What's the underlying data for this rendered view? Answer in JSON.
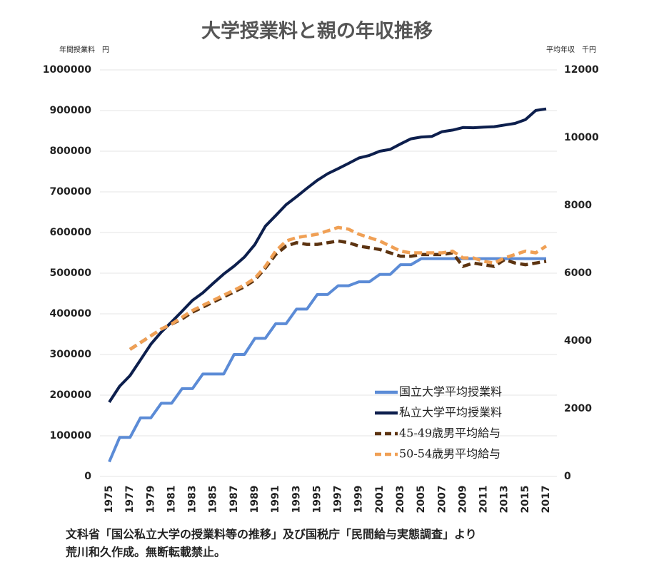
{
  "chart_data": {
    "type": "line",
    "title": "大学授業料と親の年収推移",
    "y_label": "年間授業料　円",
    "y2_label": "平均年収　千円",
    "notes": [
      "文科省「国公私立大学の授業料等の推移」及び国税庁「民間給与実態調査」より",
      "荒川和久作成。無断転載禁止。"
    ],
    "categories": [
      "1975",
      null,
      "1977",
      null,
      "1979",
      null,
      "1981",
      null,
      "1983",
      null,
      "1985",
      null,
      "1987",
      null,
      "1989",
      null,
      "1991",
      null,
      "1993",
      null,
      "1995",
      null,
      "1997",
      null,
      "1999",
      null,
      "2001",
      null,
      "2003",
      null,
      "2005",
      null,
      "2007",
      null,
      "2009",
      null,
      "2011",
      null,
      "2013",
      null,
      "2015",
      null,
      "2017"
    ],
    "series": [
      {
        "name": "国立大学平均授業料",
        "color": "#5b8bd6",
        "dashed": false,
        "axis": "y",
        "values": [
          36000,
          96000,
          96000,
          144000,
          144000,
          180000,
          180000,
          216000,
          216000,
          252000,
          252000,
          252000,
          300000,
          300000,
          339600,
          339600,
          375600,
          375600,
          411600,
          411600,
          447600,
          447600,
          469200,
          469200,
          478800,
          478800,
          496800,
          496800,
          520800,
          520800,
          535800,
          535800,
          535800,
          535800,
          535800,
          535800,
          535800,
          535800,
          535800,
          535800,
          535800,
          535800,
          535800
        ]
      },
      {
        "name": "私立大学平均授業料",
        "color": "#0d1f4d",
        "dashed": false,
        "axis": "y",
        "values": [
          182677,
          221844,
          248066,
          286568,
          325198,
          355156,
          380253,
          406261,
          433200,
          451722,
          475325,
          497826,
          517395,
          539591,
          570584,
          615486,
          641608,
          668460,
          688046,
          708847,
          728365,
          744733,
          757158,
          770024,
          783298,
          789659,
          799973,
          804367,
          817952,
          830583,
          835000,
          836297,
          848000,
          852000,
          858265,
          857763,
          859367,
          860266,
          864384,
          868447,
          877735,
          900093,
          904000
        ]
      },
      {
        "name": "45-49歳男平均給与",
        "color": "#5c3310",
        "dashed": true,
        "axis": "y2",
        "values": [
          null,
          null,
          3750,
          3950,
          4150,
          4350,
          4500,
          4650,
          4850,
          5000,
          5150,
          5300,
          5450,
          5600,
          5800,
          6150,
          6550,
          6800,
          6900,
          6850,
          6850,
          6900,
          6950,
          6900,
          6800,
          6750,
          6700,
          6600,
          6500,
          6500,
          6550,
          6550,
          6550,
          6600,
          6200,
          6300,
          6250,
          6200,
          6400,
          6300,
          6250,
          6300,
          6350
        ]
      },
      {
        "name": "50-54歳男平均給与",
        "color": "#f0a055",
        "dashed": true,
        "axis": "y2",
        "values": [
          null,
          null,
          3750,
          3950,
          4150,
          4350,
          4500,
          4700,
          4900,
          5050,
          5200,
          5350,
          5500,
          5650,
          5850,
          6200,
          6650,
          6950,
          7050,
          7100,
          7150,
          7250,
          7350,
          7300,
          7150,
          7050,
          6950,
          6800,
          6650,
          6600,
          6600,
          6600,
          6600,
          6650,
          6450,
          6450,
          6350,
          6300,
          6450,
          6550,
          6650,
          6600,
          6800
        ]
      }
    ],
    "ylim": [
      0,
      1000000
    ],
    "yticks": [
      0,
      100000,
      200000,
      300000,
      400000,
      500000,
      600000,
      700000,
      800000,
      900000,
      1000000
    ],
    "y2lim": [
      0,
      12000
    ],
    "y2ticks": [
      0,
      2000,
      4000,
      6000,
      8000,
      10000,
      12000
    ],
    "grid": true,
    "legend": "lower-right"
  }
}
